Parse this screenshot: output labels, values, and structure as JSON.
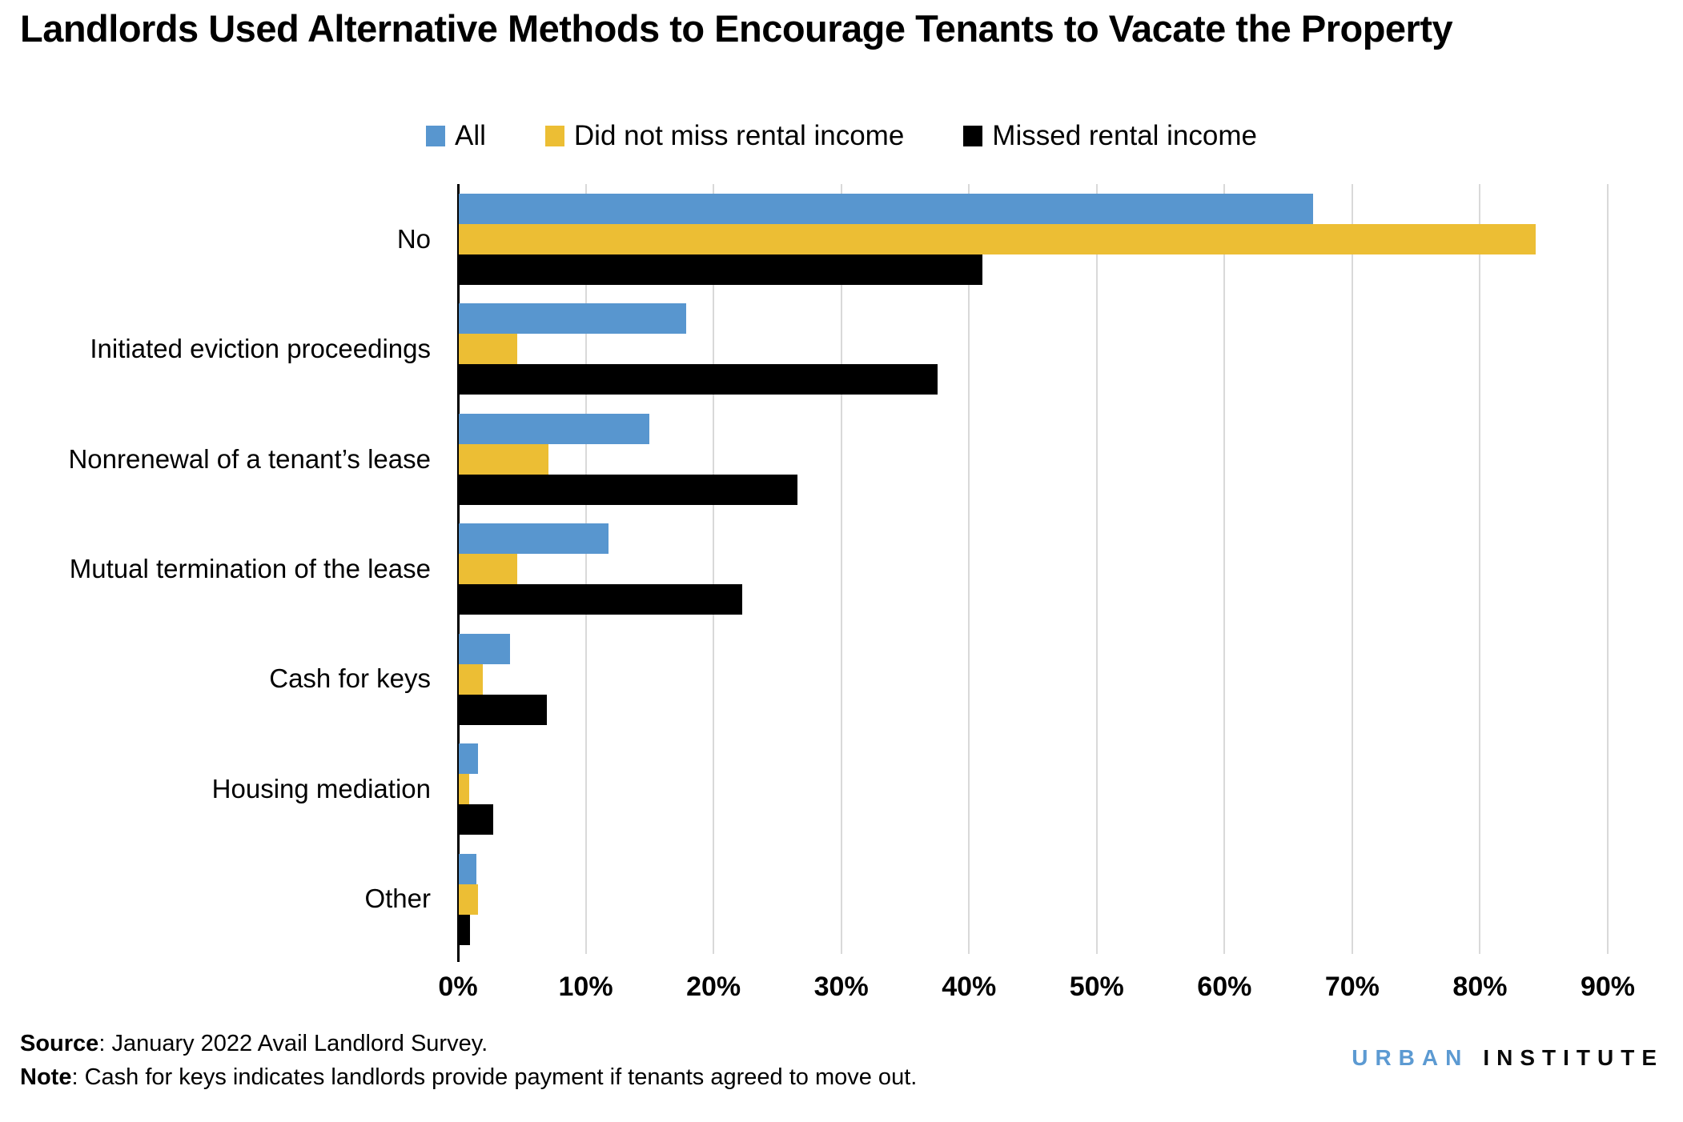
{
  "title": "Landlords Used Alternative Methods to Encourage Tenants to Vacate the Property",
  "chart_data": {
    "type": "bar",
    "orientation": "horizontal",
    "title": "Landlords Used Alternative Methods to Encourage Tenants to Vacate the Property",
    "categories": [
      "No",
      "Initiated eviction proceedings",
      "Nonrenewal of a tenant’s lease",
      "Mutual termination of the lease",
      "Cash for keys",
      "Housing mediation",
      "Other"
    ],
    "series": [
      {
        "name": "All",
        "color": "#5896cf",
        "values": [
          66.9,
          17.8,
          14.9,
          11.7,
          4.0,
          1.5,
          1.4
        ]
      },
      {
        "name": "Did not miss rental income",
        "color": "#ecbe34",
        "values": [
          84.3,
          4.6,
          7.0,
          4.6,
          1.9,
          0.8,
          1.5
        ]
      },
      {
        "name": "Missed rental income",
        "color": "#000000",
        "values": [
          41.0,
          37.5,
          26.5,
          22.2,
          6.9,
          2.7,
          0.9
        ]
      }
    ],
    "xlim": [
      0,
      90
    ],
    "tick_step": 10,
    "tick_labels": [
      "0%",
      "10%",
      "20%",
      "30%",
      "40%",
      "50%",
      "60%",
      "70%",
      "80%",
      "90%"
    ],
    "grid": true,
    "gridline_color": "#d9d9d9",
    "legend_position": "top",
    "unit": "percent"
  },
  "footer": {
    "source_prefix": "Source",
    "source_text": ": January 2022 Avail Landlord Survey.",
    "note_prefix": "Note",
    "note_text": ": Cash for keys indicates landlords provide payment if tenants agreed to move out."
  },
  "logo": {
    "word1": "URBAN",
    "word2": "INSTITUTE",
    "word1_color": "#5c9ad2"
  }
}
